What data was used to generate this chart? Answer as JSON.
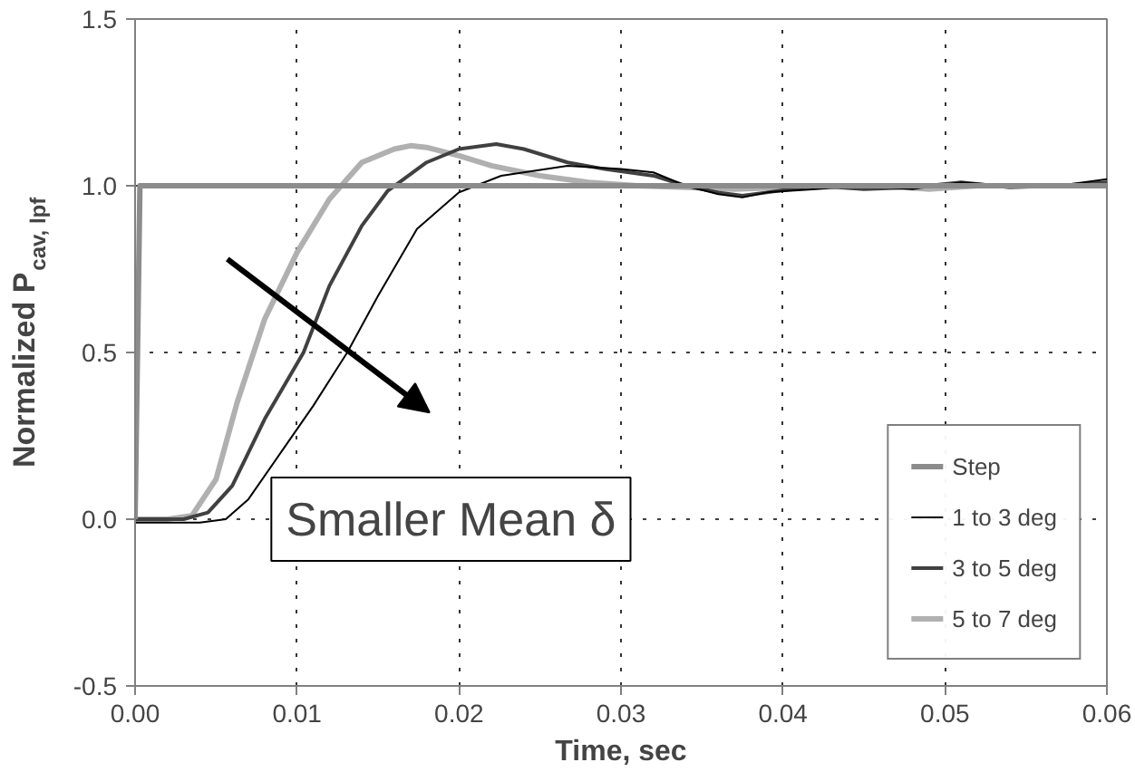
{
  "chart_data": {
    "type": "line",
    "xlabel": "Time, sec",
    "ylabel": "Normalized P$_{cav, lpf}$",
    "xlim": [
      0,
      0.06
    ],
    "ylim": [
      -0.5,
      1.5
    ],
    "xticks": [
      {
        "value": 0,
        "label": "0.00"
      },
      {
        "value": 0.01,
        "label": "0.01"
      },
      {
        "value": 0.02,
        "label": "0.02"
      },
      {
        "value": 0.03,
        "label": "0.03"
      },
      {
        "value": 0.04,
        "label": "0.04"
      },
      {
        "value": 0.05,
        "label": "0.05"
      },
      {
        "value": 0.06,
        "label": "0.06"
      }
    ],
    "yticks": [
      -0.5,
      {
        "value": 0,
        "label": "0.0"
      },
      0.5,
      {
        "value": 1,
        "label": "1.0"
      },
      1.5
    ],
    "grid": true,
    "legend": "bottom right",
    "marker": "none",
    "line_style": "solid",
    "annotations": [
      "Smaller Mean δ"
    ],
    "series": [
      {
        "name": "Step",
        "color": "#8c8c8c",
        "x": [
          0,
          0.0003,
          0.06
        ],
        "values": [
          0,
          1,
          1
        ]
      },
      {
        "name": "1 to 3 deg",
        "color": "#000000",
        "x": [
          0,
          0.004,
          0.0056,
          0.007,
          0.009,
          0.011,
          0.0131,
          0.015,
          0.0174,
          0.02,
          0.0226,
          0.0267,
          0.03,
          0.032,
          0.034,
          0.036,
          0.0375,
          0.039,
          0.042,
          0.045,
          0.048,
          0.051,
          0.054,
          0.057,
          0.06
        ],
        "values": [
          -0.01,
          -0.01,
          0.0,
          0.06,
          0.2,
          0.34,
          0.5,
          0.67,
          0.87,
          0.98,
          1.03,
          1.06,
          1.05,
          1.04,
          1.0,
          0.975,
          0.965,
          0.98,
          0.99,
          1.0,
          0.99,
          1.01,
          1.0,
          1.0,
          1.02
        ]
      },
      {
        "name": "3 to 5 deg",
        "color": "#404040",
        "x": [
          0,
          0.003,
          0.0045,
          0.006,
          0.008,
          0.0104,
          0.012,
          0.014,
          0.0156,
          0.018,
          0.02,
          0.0223,
          0.024,
          0.0267,
          0.029,
          0.032,
          0.034,
          0.036,
          0.0375,
          0.039,
          0.042,
          0.045,
          0.048,
          0.051,
          0.054,
          0.057,
          0.06
        ],
        "values": [
          0,
          0,
          0.02,
          0.1,
          0.3,
          0.5,
          0.7,
          0.88,
          0.985,
          1.07,
          1.11,
          1.125,
          1.11,
          1.07,
          1.05,
          1.03,
          1.0,
          0.98,
          0.97,
          0.98,
          1.0,
          0.99,
          0.995,
          1.01,
          0.995,
          1.0,
          1.01
        ]
      },
      {
        "name": "5 to 7 deg",
        "color": "#b0b0b0",
        "x": [
          0,
          0.002,
          0.0035,
          0.005,
          0.0063,
          0.008,
          0.01,
          0.012,
          0.014,
          0.016,
          0.017,
          0.018,
          0.02,
          0.022,
          0.025,
          0.028,
          0.031,
          0.034,
          0.037,
          0.04,
          0.043,
          0.046,
          0.049,
          0.052,
          0.055,
          0.058,
          0.06
        ],
        "values": [
          0,
          0,
          0.01,
          0.12,
          0.35,
          0.6,
          0.8,
          0.96,
          1.07,
          1.11,
          1.12,
          1.115,
          1.09,
          1.06,
          1.03,
          1.01,
          1.0,
          0.995,
          0.99,
          0.995,
          1.0,
          1.0,
          0.99,
          1.0,
          1.0,
          1.0,
          1.0
        ]
      }
    ]
  }
}
